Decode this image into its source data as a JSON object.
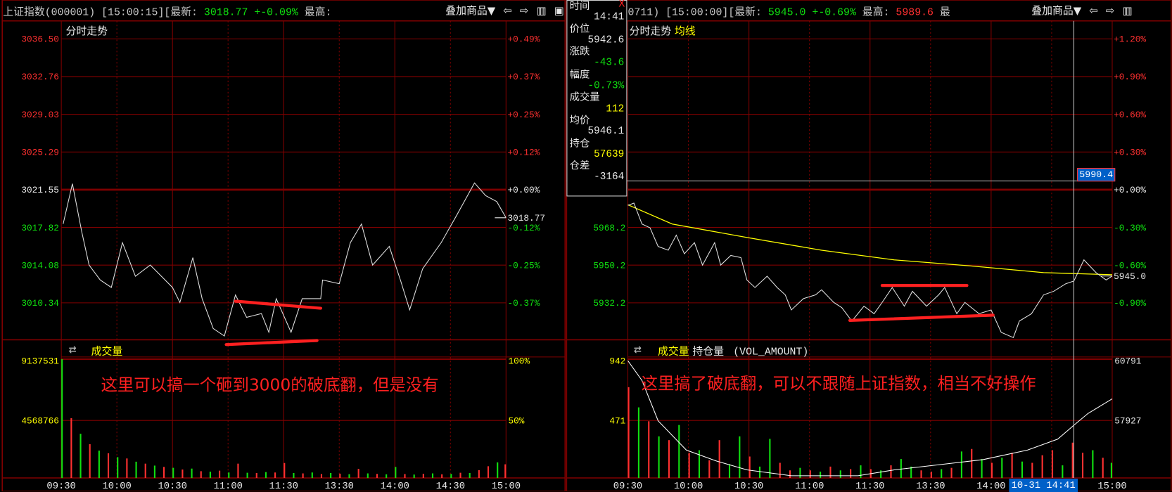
{
  "colors": {
    "grid": "#800000",
    "up": "#ff3030",
    "down": "#10e010",
    "avg": "#ffff00",
    "price_line": "#e0e0e0",
    "volume_label": "#ffff00",
    "crosshair": "#c0c0c0",
    "highlight": "#0060c8"
  },
  "toolbar": {
    "overlay_label": "叠加商品▼",
    "icons": [
      "arrow-left-icon",
      "arrow-right-icon",
      "layout-icon",
      "window-icon"
    ]
  },
  "left": {
    "header": {
      "name": "上证指数(000001)",
      "time": "[15:00:15]",
      "latest_label": "[最新:",
      "latest": "3018.77",
      "change": "+-0.09%",
      "high_label": "最高:"
    },
    "chart_title": "分时走势",
    "last_price_label": "3018.77",
    "price_labels": [
      {
        "v": "3036.50",
        "p": "+0.49%",
        "c": "up"
      },
      {
        "v": "3032.76",
        "p": "+0.37%",
        "c": "up"
      },
      {
        "v": "3029.03",
        "p": "+0.25%",
        "c": "up"
      },
      {
        "v": "3025.29",
        "p": "+0.12%",
        "c": "up"
      },
      {
        "v": "3021.55",
        "p": "+0.00%",
        "c": "flat"
      },
      {
        "v": "3017.82",
        "p": "-0.12%",
        "c": "down"
      },
      {
        "v": "3014.08",
        "p": "-0.25%",
        "c": "down"
      },
      {
        "v": "3010.34",
        "p": "-0.37%",
        "c": "down"
      }
    ],
    "volume": {
      "title": "成交量",
      "left_labels": [
        "9137531",
        "4568766"
      ],
      "right_labels": [
        "100%",
        "50%"
      ]
    },
    "time_labels": [
      "09:30",
      "10:00",
      "10:30",
      "11:00",
      "11:30",
      "13:30",
      "14:00",
      "14:30",
      "15:00"
    ],
    "annotation": "这里可以搞一个砸到3000的破底翻，但是没有"
  },
  "right": {
    "header": {
      "name": "0711)",
      "time": "[15:00:00]",
      "latest_label": "[最新:",
      "latest": "5945.0",
      "change": "+-0.69%",
      "high_label": "最高:",
      "high": "5989.6",
      "more": "最"
    },
    "chart_title": "分时走势",
    "avg_title": "均线",
    "last_price_label": "5945.0",
    "crosshair_price": "5990.4",
    "crosshair_time": "10-31  14:41",
    "price_labels": [
      {
        "v": "",
        "p": "+1.20%",
        "c": "up"
      },
      {
        "v": "",
        "p": "+0.90%",
        "c": "up"
      },
      {
        "v": "",
        "p": "+0.60%",
        "c": "up"
      },
      {
        "v": "",
        "p": "+0.30%",
        "c": "up"
      },
      {
        "v": "",
        "p": "+0.00%",
        "c": "flat"
      },
      {
        "v": "5968.2",
        "p": "-0.30%",
        "c": "down"
      },
      {
        "v": "5950.2",
        "p": "-0.60%",
        "c": "down"
      },
      {
        "v": "5932.2",
        "p": "-0.90%",
        "c": "down"
      }
    ],
    "volume": {
      "title": "成交量",
      "oi_title": "持仓量",
      "formula": "(VOL_AMOUNT)",
      "left_labels": [
        "942",
        "471"
      ],
      "right_labels": [
        "60791",
        "57927"
      ]
    },
    "time_labels": [
      "09:30",
      "10:00",
      "10:30",
      "11:00",
      "11:30",
      "13:30",
      "14:00",
      "",
      "15:00"
    ],
    "annotation": "这里搞了破底翻，可以不跟随上证指数，相当不好操作",
    "tooltip": [
      {
        "k": "时间",
        "v": "14:41",
        "c": "w"
      },
      {
        "k": "价位",
        "v": "5942.6",
        "c": "w"
      },
      {
        "k": "涨跌",
        "v": "-43.6",
        "c": "g"
      },
      {
        "k": "幅度",
        "v": "-0.73%",
        "c": "g"
      },
      {
        "k": "成交量",
        "v": "112",
        "c": "y"
      },
      {
        "k": "均价",
        "v": "5946.1",
        "c": "w"
      },
      {
        "k": "持仓",
        "v": "57639",
        "c": "y"
      },
      {
        "k": "仓差",
        "v": "-3164",
        "c": "w"
      }
    ],
    "tooltip_close": "X"
  },
  "chart_data": [
    {
      "type": "line",
      "name_shown": "上证指数(000001)",
      "prev_close": 3021.55,
      "ylim": [
        3006.5,
        3036.5
      ],
      "x": [
        "09:31",
        "09:36",
        "09:41",
        "09:45",
        "09:51",
        "09:57",
        "10:03",
        "10:10",
        "10:18",
        "10:30",
        "10:34",
        "10:41",
        "10:46",
        "10:52",
        "10:58",
        "11:04",
        "11:10",
        "11:18",
        "11:22",
        "11:26",
        "13:04",
        "13:10",
        "13:20",
        "13:21",
        "13:30",
        "13:36",
        "13:42",
        "13:48",
        "13:57",
        "14:03",
        "14:08",
        "14:15",
        "14:25",
        "14:33",
        "14:43",
        "14:49",
        "14:55",
        "15:00"
      ],
      "price": [
        3018.15,
        3022.14,
        3017.41,
        3014.08,
        3012.6,
        3011.86,
        3016.3,
        3012.97,
        3014.08,
        3011.86,
        3010.38,
        3014.82,
        3010.75,
        3007.79,
        3007.05,
        3011.12,
        3008.9,
        3009.27,
        3007.42,
        3010.75,
        3007.42,
        3010.75,
        3010.75,
        3012.6,
        3012.23,
        3016.3,
        3018.15,
        3014.08,
        3015.93,
        3012.6,
        3009.64,
        3013.71,
        3016.3,
        3018.89,
        3022.22,
        3020.96,
        3020.37,
        3018.77
      ],
      "volume_max": 9137531,
      "volume": [
        [
          "09:30",
          9137531,
          "down"
        ],
        [
          "09:35",
          4600000,
          "up"
        ],
        [
          "09:40",
          3400000,
          "down"
        ],
        [
          "09:45",
          2600000,
          "up"
        ],
        [
          "09:50",
          2100000,
          "down"
        ],
        [
          "09:55",
          1900000,
          "up"
        ],
        [
          "10:00",
          1600000,
          "down"
        ],
        [
          "10:05",
          1500000,
          "up"
        ],
        [
          "10:10",
          1250000,
          "down"
        ],
        [
          "10:15",
          1100000,
          "up"
        ],
        [
          "10:20",
          950000,
          "down"
        ],
        [
          "10:25",
          850000,
          "up"
        ],
        [
          "10:30",
          780000,
          "down"
        ],
        [
          "10:35",
          650000,
          "up"
        ],
        [
          "10:40",
          720000,
          "down"
        ],
        [
          "10:45",
          520000,
          "up"
        ],
        [
          "10:50",
          480000,
          "down"
        ],
        [
          "10:55",
          560000,
          "up"
        ],
        [
          "11:00",
          420000,
          "down"
        ],
        [
          "11:05",
          1100000,
          "up"
        ],
        [
          "11:10",
          400000,
          "down"
        ],
        [
          "11:15",
          380000,
          "up"
        ],
        [
          "11:20",
          450000,
          "down"
        ],
        [
          "11:25",
          420000,
          "up"
        ],
        [
          "13:00",
          1150000,
          "up"
        ],
        [
          "13:05",
          380000,
          "down"
        ],
        [
          "13:10",
          350000,
          "up"
        ],
        [
          "13:15",
          420000,
          "down"
        ],
        [
          "13:20",
          300000,
          "up"
        ],
        [
          "13:25",
          380000,
          "down"
        ],
        [
          "13:30",
          330000,
          "up"
        ],
        [
          "13:35",
          290000,
          "down"
        ],
        [
          "13:40",
          700000,
          "up"
        ],
        [
          "13:45",
          350000,
          "down"
        ],
        [
          "13:50",
          310000,
          "up"
        ],
        [
          "13:55",
          280000,
          "down"
        ],
        [
          "14:00",
          850000,
          "down"
        ],
        [
          "14:05",
          300000,
          "up"
        ],
        [
          "14:10",
          260000,
          "down"
        ],
        [
          "14:15",
          320000,
          "up"
        ],
        [
          "14:20",
          350000,
          "down"
        ],
        [
          "14:25",
          280000,
          "up"
        ],
        [
          "14:30",
          310000,
          "down"
        ],
        [
          "14:35",
          400000,
          "up"
        ],
        [
          "14:40",
          380000,
          "down"
        ],
        [
          "14:45",
          600000,
          "up"
        ],
        [
          "14:50",
          900000,
          "up"
        ],
        [
          "14:55",
          1200000,
          "down"
        ],
        [
          "15:00",
          1050000,
          "up"
        ]
      ],
      "annotation_lines": [
        {
          "from": [
            "11:04",
            3010.5
          ],
          "to": [
            "13:20",
            3009.8
          ]
        },
        {
          "from": [
            "10:59",
            3006.2
          ],
          "to": [
            "13:18",
            3006.6
          ]
        }
      ]
    },
    {
      "type": "line",
      "prev_close": 5986.2,
      "ylim": [
        5914.2,
        6058.2
      ],
      "x": [
        "09:30",
        "09:33",
        "09:37",
        "09:41",
        "09:45",
        "09:50",
        "09:54",
        "09:58",
        "10:03",
        "10:07",
        "10:13",
        "10:16",
        "10:21",
        "10:26",
        "10:29",
        "10:33",
        "10:39",
        "10:44",
        "10:48",
        "10:51",
        "10:57",
        "11:03",
        "11:06",
        "11:12",
        "11:16",
        "11:21",
        "11:27",
        "13:02",
        "13:06",
        "13:11",
        "13:17",
        "13:21",
        "13:28",
        "13:34",
        "13:37",
        "13:43",
        "13:47",
        "13:54",
        "14:00",
        "14:05",
        "14:11",
        "14:14",
        "14:20",
        "14:26",
        "14:31",
        "14:37",
        "14:41",
        "14:46",
        "14:52",
        "14:57",
        "15:00"
      ],
      "price": [
        5978.7,
        5979.8,
        5969.8,
        5968.0,
        5959.1,
        5957.3,
        5964.5,
        5955.6,
        5960.9,
        5950.2,
        5960.9,
        5950.2,
        5954.8,
        5953.8,
        5943.1,
        5939.5,
        5944.9,
        5939.5,
        5936.0,
        5928.8,
        5934.2,
        5936.0,
        5938.4,
        5932.4,
        5929.9,
        5923.5,
        5930.6,
        5927.0,
        5932.4,
        5939.5,
        5930.6,
        5937.7,
        5930.6,
        5936.0,
        5939.5,
        5927.0,
        5932.4,
        5927.0,
        5928.8,
        5918.1,
        5915.6,
        5923.5,
        5927.0,
        5936.0,
        5937.7,
        5941.3,
        5942.6,
        5952.7,
        5946.6,
        5943.1,
        5945.0
      ],
      "avg_x": [
        "09:30",
        "09:52",
        "10:29",
        "11:06",
        "13:12",
        "13:49",
        "14:26",
        "15:00"
      ],
      "avg": [
        5979.0,
        5969.8,
        5963.4,
        5957.3,
        5952.7,
        5949.9,
        5946.6,
        5945.6
      ],
      "volume_max": 942,
      "volume": [
        [
          "09:30",
          720,
          "up"
        ],
        [
          "09:35",
          560,
          "down"
        ],
        [
          "09:40",
          450,
          "up"
        ],
        [
          "09:45",
          330,
          "down"
        ],
        [
          "09:50",
          300,
          "up"
        ],
        [
          "09:55",
          420,
          "down"
        ],
        [
          "10:00",
          200,
          "up"
        ],
        [
          "10:05",
          220,
          "down"
        ],
        [
          "10:10",
          140,
          "up"
        ],
        [
          "10:15",
          300,
          "up"
        ],
        [
          "10:20",
          110,
          "down"
        ],
        [
          "10:25",
          330,
          "down"
        ],
        [
          "10:30",
          170,
          "up"
        ],
        [
          "10:35",
          90,
          "down"
        ],
        [
          "10:40",
          310,
          "down"
        ],
        [
          "10:45",
          120,
          "up"
        ],
        [
          "10:50",
          60,
          "up"
        ],
        [
          "10:55",
          80,
          "down"
        ],
        [
          "11:00",
          60,
          "up"
        ],
        [
          "11:05",
          50,
          "down"
        ],
        [
          "11:10",
          90,
          "up"
        ],
        [
          "11:15",
          60,
          "down"
        ],
        [
          "11:20",
          70,
          "up"
        ],
        [
          "11:25",
          100,
          "down"
        ],
        [
          "13:00",
          70,
          "up"
        ],
        [
          "13:05",
          60,
          "down"
        ],
        [
          "13:10",
          100,
          "up"
        ],
        [
          "13:15",
          150,
          "down"
        ],
        [
          "13:20",
          90,
          "down"
        ],
        [
          "13:25",
          60,
          "up"
        ],
        [
          "13:30",
          50,
          "up"
        ],
        [
          "13:35",
          70,
          "down"
        ],
        [
          "13:40",
          80,
          "up"
        ],
        [
          "13:45",
          210,
          "down"
        ],
        [
          "13:50",
          230,
          "up"
        ],
        [
          "13:55",
          150,
          "down"
        ],
        [
          "14:00",
          120,
          "up"
        ],
        [
          "14:05",
          160,
          "down"
        ],
        [
          "14:10",
          200,
          "up"
        ],
        [
          "14:15",
          130,
          "down"
        ],
        [
          "14:20",
          120,
          "up"
        ],
        [
          "14:25",
          180,
          "up"
        ],
        [
          "14:30",
          220,
          "up"
        ],
        [
          "14:35",
          100,
          "down"
        ],
        [
          "14:40",
          280,
          "up"
        ],
        [
          "14:45",
          200,
          "up"
        ],
        [
          "14:50",
          220,
          "down"
        ],
        [
          "14:55",
          160,
          "up"
        ],
        [
          "15:00",
          120,
          "down"
        ]
      ],
      "oi_x": [
        "09:30",
        "09:37",
        "09:45",
        "09:59",
        "10:14",
        "10:29",
        "10:51",
        "11:24",
        "13:12",
        "13:34",
        "13:56",
        "14:18",
        "14:33",
        "14:41",
        "14:48",
        "15:00"
      ],
      "oi": [
        60791,
        59824,
        57855,
        56423,
        55886,
        55457,
        55170,
        55170,
        55457,
        55707,
        55958,
        56423,
        56960,
        57639,
        58213,
        58929
      ],
      "oi_range": [
        55063,
        60791
      ],
      "crosshair": {
        "time": "14:41",
        "price": 5990.4
      },
      "annotation_lines": [
        {
          "from": [
            "13:06",
            5940.5
          ],
          "to": [
            "13:48",
            5940.5
          ]
        },
        {
          "from": [
            "11:20",
            5923.8
          ],
          "to": [
            "14:01",
            5926.3
          ]
        }
      ]
    }
  ]
}
